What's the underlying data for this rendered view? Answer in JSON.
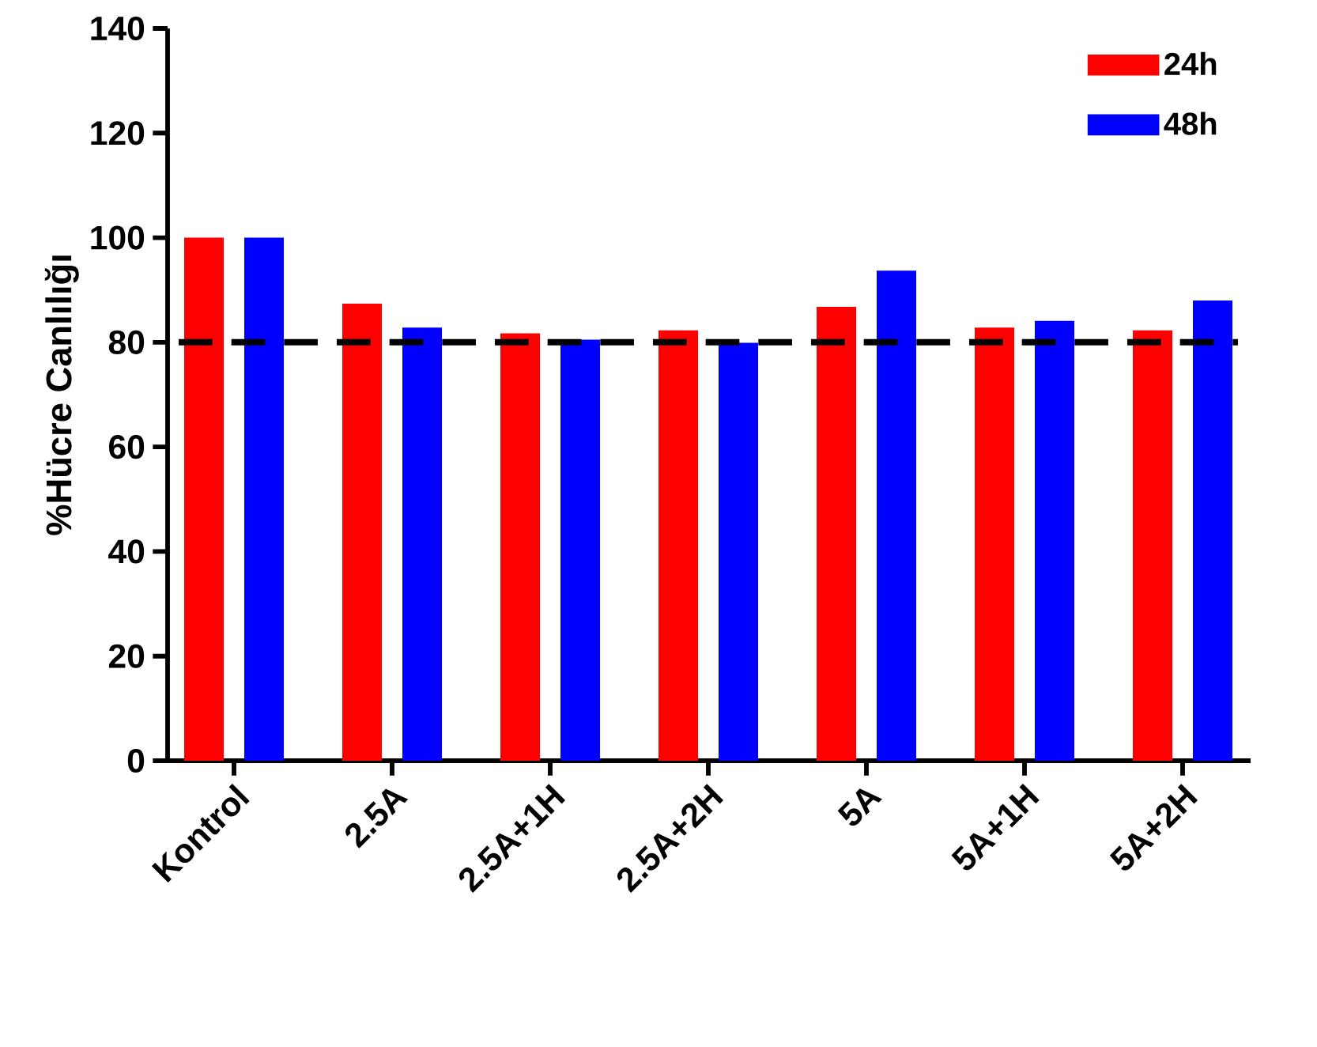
{
  "chart_data": {
    "type": "bar",
    "ylabel": "%Hücre Canlılığı",
    "categories": [
      "Kontrol",
      "2.5A",
      "2.5A+1H",
      "2.5A+2H",
      "5A",
      "5A+1H",
      "5A+2H"
    ],
    "series": [
      {
        "name": "24h",
        "color": "#ff0000",
        "values": [
          100,
          87.4,
          81.7,
          82.3,
          86.8,
          82.8,
          82.3
        ]
      },
      {
        "name": "48h",
        "color": "#0000ff",
        "values": [
          100,
          82.8,
          80.5,
          79.9,
          93.7,
          84.1,
          88.0
        ]
      }
    ],
    "ylim": [
      0,
      140
    ],
    "yticks": [
      0,
      20,
      40,
      60,
      80,
      100,
      120,
      140
    ],
    "ref_lines": [
      {
        "axis": "y",
        "value": 80,
        "color": "#000000",
        "line_style": "dashed"
      }
    ],
    "legend": "top right",
    "grid": false
  }
}
